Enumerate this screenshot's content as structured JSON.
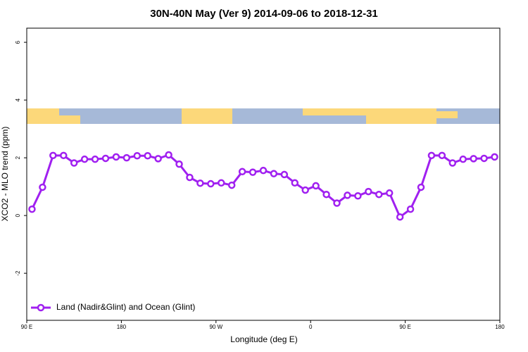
{
  "chart_data": {
    "type": "line",
    "title": "30N-40N May (Ver 9)   2014-09-06 to 2018-12-31",
    "x_label": "Longitude (deg E)",
    "y_label": "XCO2 - MLO trend (ppm)",
    "x": [
      95,
      105,
      115,
      125,
      135,
      145,
      155,
      165,
      175,
      185,
      195,
      205,
      215,
      225,
      235,
      245,
      255,
      265,
      275,
      285,
      295,
      305,
      315,
      325,
      335,
      345,
      355,
      365,
      375,
      385,
      395,
      405,
      415,
      425,
      435,
      445,
      455,
      465,
      475,
      485,
      495,
      505,
      515,
      525,
      535
    ],
    "series": [
      {
        "name": "Land (Nadir&Glint) and Ocean (Glint)",
        "color": "#a020f0",
        "values": [
          0.22,
          0.98,
          2.08,
          2.08,
          1.82,
          1.95,
          1.95,
          1.98,
          2.03,
          2.0,
          2.07,
          2.07,
          1.97,
          2.1,
          1.78,
          1.32,
          1.12,
          1.1,
          1.13,
          1.05,
          1.52,
          1.5,
          1.56,
          1.45,
          1.42,
          1.13,
          0.88,
          1.03,
          0.73,
          0.43,
          0.7,
          0.68,
          0.83,
          0.73,
          0.78,
          -0.05,
          0.22,
          0.98,
          2.08,
          2.08,
          1.82,
          1.95,
          1.97,
          1.98,
          2.03
        ]
      }
    ],
    "xlim": [
      90,
      540
    ],
    "xticks": [
      {
        "value": 90,
        "label": "90 E"
      },
      180,
      {
        "value": 270,
        "label": "90 W"
      },
      {
        "value": 360,
        "label": "0"
      },
      {
        "value": 450,
        "label": "90 E"
      },
      {
        "value": 540,
        "label": "180"
      }
    ],
    "ylim": [
      -3.63,
      6.49
    ],
    "yticks": [
      -2,
      0,
      2,
      4,
      6
    ],
    "legend": "bottom-left"
  }
}
